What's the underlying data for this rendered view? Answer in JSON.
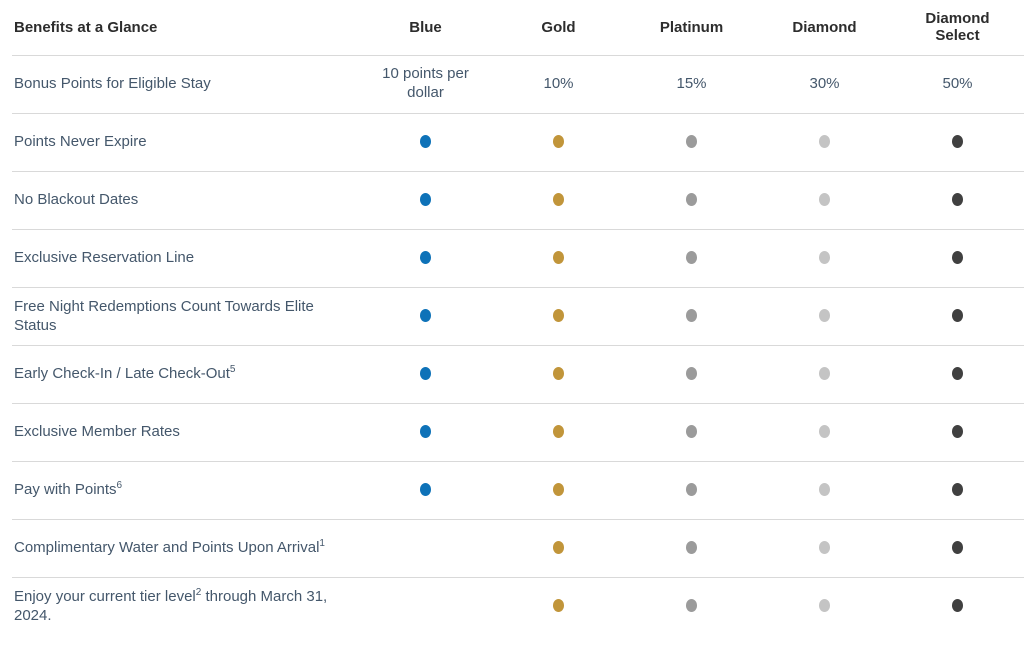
{
  "table": {
    "title_header": "Benefits at a Glance",
    "columns": [
      {
        "key": "blue",
        "label": "Blue",
        "dot_color": "#0e72b8"
      },
      {
        "key": "gold",
        "label": "Gold",
        "dot_color": "#c1953a"
      },
      {
        "key": "platinum",
        "label": "Platinum",
        "dot_color": "#9b9b9b"
      },
      {
        "key": "diamond",
        "label": "Diamond",
        "dot_color": "#c4c4c4"
      },
      {
        "key": "diamond-select",
        "label": "Diamond Select",
        "dot_color": "#404040"
      }
    ],
    "rows": [
      {
        "label_parts": [
          [
            "text",
            "Bonus Points for Eligible Stay"
          ]
        ],
        "cells": [
          "10 points per dollar",
          "10%",
          "15%",
          "30%",
          "50%"
        ]
      },
      {
        "label_parts": [
          [
            "text",
            "Points Never Expire"
          ]
        ],
        "cells": [
          "dot",
          "dot",
          "dot",
          "dot",
          "dot"
        ]
      },
      {
        "label_parts": [
          [
            "text",
            "No Blackout Dates"
          ]
        ],
        "cells": [
          "dot",
          "dot",
          "dot",
          "dot",
          "dot"
        ]
      },
      {
        "label_parts": [
          [
            "text",
            "Exclusive Reservation Line"
          ]
        ],
        "cells": [
          "dot",
          "dot",
          "dot",
          "dot",
          "dot"
        ]
      },
      {
        "label_parts": [
          [
            "text",
            "Free Night Redemptions Count Towards Elite Status"
          ]
        ],
        "cells": [
          "dot",
          "dot",
          "dot",
          "dot",
          "dot"
        ]
      },
      {
        "label_parts": [
          [
            "text",
            "Early Check-In / Late Check-Out"
          ],
          [
            "sup",
            "5"
          ]
        ],
        "cells": [
          "dot",
          "dot",
          "dot",
          "dot",
          "dot"
        ]
      },
      {
        "label_parts": [
          [
            "text",
            "Exclusive Member Rates"
          ]
        ],
        "cells": [
          "dot",
          "dot",
          "dot",
          "dot",
          "dot"
        ]
      },
      {
        "label_parts": [
          [
            "text",
            "Pay with Points"
          ],
          [
            "sup",
            "6"
          ]
        ],
        "cells": [
          "dot",
          "dot",
          "dot",
          "dot",
          "dot"
        ]
      },
      {
        "label_parts": [
          [
            "text",
            "Complimentary Water and Points Upon Arrival"
          ],
          [
            "sup",
            "1"
          ]
        ],
        "cells": [
          "",
          "dot",
          "dot",
          "dot",
          "dot"
        ]
      },
      {
        "label_parts": [
          [
            "text",
            "Enjoy your current tier level"
          ],
          [
            "sup",
            "2"
          ],
          [
            "text",
            " through March 31, 2024."
          ]
        ],
        "cells": [
          "",
          "dot",
          "dot",
          "dot",
          "dot"
        ]
      }
    ]
  },
  "colors": {
    "header_text": "#2d2d2d",
    "body_text": "#44576b",
    "divider": "#d9d9d9",
    "background": "#ffffff"
  }
}
